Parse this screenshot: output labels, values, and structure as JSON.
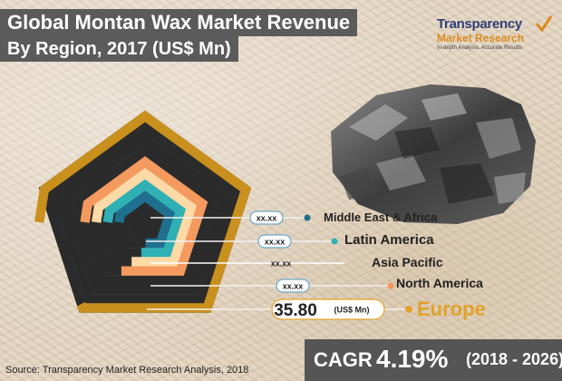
{
  "title": {
    "line1": "Global Montan Wax Market Revenue",
    "line2": "By Region, 2017 (US$ Mn)"
  },
  "logo": {
    "line1": "Transparency",
    "line2": "Market Research",
    "line3": "In-depth Analysis. Accurate Results"
  },
  "chart_data": {
    "type": "radial-bar",
    "title": "Global Montan Wax Market Revenue By Region, 2017 (US$ Mn)",
    "unit": "US$ Mn",
    "categories": [
      "Middle East & Africa",
      "Latin America",
      "Asia Pacific",
      "North America",
      "Europe"
    ],
    "value_labels": [
      "xx.xx",
      "xx.xx",
      "xx.xx",
      "xx.xx",
      "35.80"
    ],
    "values": [
      null,
      null,
      null,
      null,
      35.8
    ],
    "fractions": [
      0.75,
      0.77,
      0.8,
      0.82,
      0.86
    ],
    "highlight": "Europe",
    "highlight_unit_label": "(US$ Mn)",
    "colors": [
      "#1f6f8f",
      "#2fb0b4",
      "#ffd9a6",
      "#f59a5e",
      "#c9901e"
    ],
    "track_color": "#2b2b2b",
    "annotation": {
      "label": "CAGR",
      "value": "4.19%",
      "period": "(2018 - 2026)"
    }
  },
  "source": "Source: Transparency Market Research Analysis, 2018"
}
